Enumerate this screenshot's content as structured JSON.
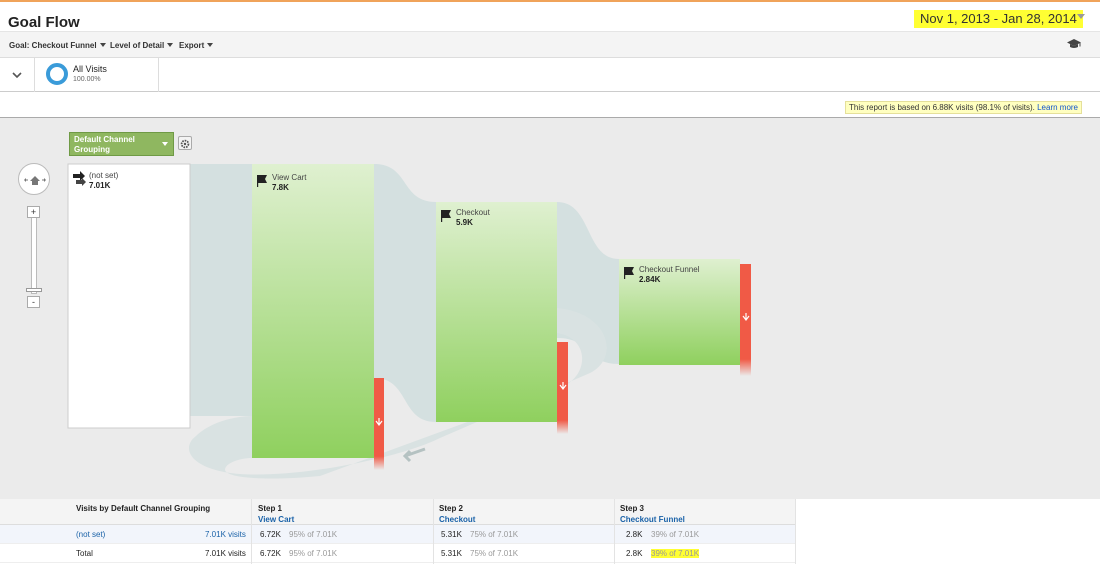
{
  "header": {
    "title": "Goal Flow",
    "date_range": "Nov 1, 2013 - Jan 28, 2014"
  },
  "toolbar": {
    "goal_label": "Goal: Checkout Funnel",
    "detail_label": "Level of Detail",
    "export_label": "Export"
  },
  "segment": {
    "name": "All Visits",
    "percent": "100.00%",
    "ring_color": "#3a9bd9"
  },
  "notice": {
    "text": "This report is based on 6.88K visits (98.1% of visits).",
    "link": "Learn more"
  },
  "dimension": {
    "label": "Default Channel Grouping"
  },
  "flow": {
    "source": {
      "name": "(not set)",
      "value": "7.01K"
    },
    "steps": [
      {
        "name": "View Cart",
        "value": "7.8K"
      },
      {
        "name": "Checkout",
        "value": "5.9K"
      },
      {
        "name": "Checkout Funnel",
        "value": "2.84K"
      }
    ],
    "colors": {
      "node_top": "#dff0d0",
      "node_bottom": "#8fd05e",
      "exit": "#f05a46",
      "link": "#d4e0e0"
    }
  },
  "table": {
    "col0_header": "Visits by Default Channel Grouping",
    "steps": [
      {
        "label": "Step 1",
        "name": "View Cart"
      },
      {
        "label": "Step 2",
        "name": "Checkout"
      },
      {
        "label": "Step 3",
        "name": "Checkout Funnel"
      }
    ],
    "rows": [
      {
        "name": "(not set)",
        "visits": "7.01K visits",
        "s1": "6.72K",
        "s1p": "95% of 7.01K",
        "s2": "5.31K",
        "s2p": "75% of 7.01K",
        "s3": "2.8K",
        "s3p": "39% of 7.01K"
      },
      {
        "name": "Total",
        "visits": "7.01K visits",
        "s1": "6.72K",
        "s1p": "95% of 7.01K",
        "s2": "5.31K",
        "s2p": "75% of 7.01K",
        "s3": "2.8K",
        "s3p": "39% of 7.01K"
      }
    ]
  }
}
